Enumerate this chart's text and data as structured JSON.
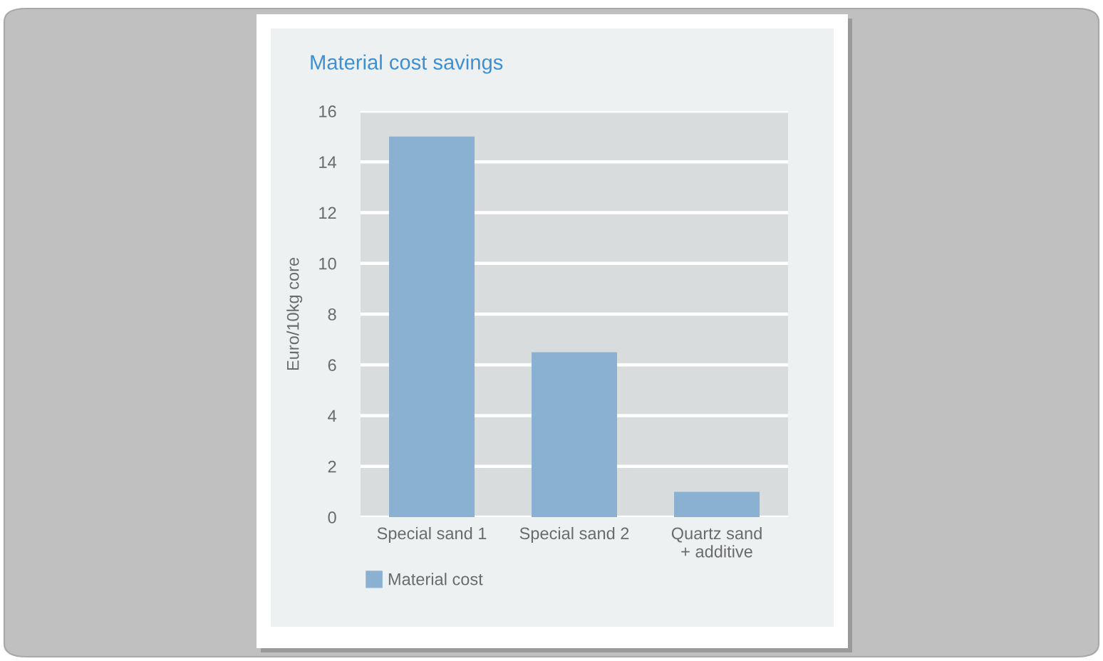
{
  "chart_data": {
    "type": "bar",
    "title": "Material cost savings",
    "ylabel": "Euro/10kg core",
    "categories": [
      "Special sand 1",
      "Special sand 2",
      "Quartz sand\n+ additive"
    ],
    "series": [
      {
        "name": "Material cost",
        "color": "#8ab0d2",
        "values": [
          15,
          6.5,
          1
        ]
      }
    ],
    "ylim": [
      0,
      16
    ],
    "yticks": [
      0,
      2,
      4,
      6,
      8,
      10,
      12,
      14,
      16
    ],
    "grid": "y",
    "legend": "bottom"
  }
}
